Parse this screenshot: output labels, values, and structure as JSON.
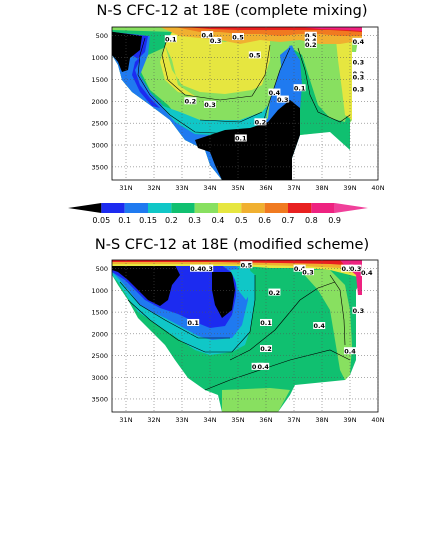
{
  "chart_data": [
    {
      "type": "heatmap",
      "title": "N-S CFC-12 at 18E (complete mixing)",
      "x_ticks": [
        "31N",
        "32N",
        "33N",
        "34N",
        "35N",
        "36N",
        "37N",
        "38N",
        "39N",
        "40N"
      ],
      "x_range": [
        30.5,
        40
      ],
      "y_ticks": [
        "500",
        "1000",
        "1500",
        "2000",
        "2500",
        "3000",
        "3500"
      ],
      "y_range": [
        300,
        3800
      ],
      "grid": true,
      "contour_labels": [
        {
          "text": "0.1",
          "x": 32.6,
          "y": 580
        },
        {
          "text": "0.4",
          "x": 33.9,
          "y": 485
        },
        {
          "text": "0.3",
          "x": 34.2,
          "y": 620
        },
        {
          "text": "0.5",
          "x": 35.0,
          "y": 530
        },
        {
          "text": "0.5",
          "x": 35.6,
          "y": 950
        },
        {
          "text": "0.5",
          "x": 37.6,
          "y": 500
        },
        {
          "text": "0.4",
          "x": 37.6,
          "y": 620
        },
        {
          "text": "0.2",
          "x": 37.6,
          "y": 710
        },
        {
          "text": "0.4",
          "x": 39.3,
          "y": 640
        },
        {
          "text": "0.3",
          "x": 39.3,
          "y": 1110
        },
        {
          "text": "0.2",
          "x": 39.3,
          "y": 1370
        },
        {
          "text": "0.3",
          "x": 39.3,
          "y": 1450
        },
        {
          "text": "0.3",
          "x": 39.3,
          "y": 1730
        },
        {
          "text": "0.1",
          "x": 37.2,
          "y": 1700
        },
        {
          "text": "0.4",
          "x": 36.3,
          "y": 1800
        },
        {
          "text": "0.3",
          "x": 36.6,
          "y": 1960
        },
        {
          "text": "0.2",
          "x": 33.3,
          "y": 2000
        },
        {
          "text": "0.3",
          "x": 34.0,
          "y": 2080
        },
        {
          "text": "0.2",
          "x": 35.8,
          "y": 2480
        },
        {
          "text": "0.1",
          "x": 35.1,
          "y": 2850
        }
      ]
    },
    {
      "type": "heatmap",
      "title": "N-S CFC-12 at 18E (modified scheme)",
      "x_ticks": [
        "31N",
        "32N",
        "33N",
        "34N",
        "35N",
        "36N",
        "37N",
        "38N",
        "39N",
        "40N"
      ],
      "x_range": [
        30.5,
        40
      ],
      "y_ticks": [
        "500",
        "1000",
        "1500",
        "2000",
        "2500",
        "3000",
        "3500"
      ],
      "y_range": [
        300,
        3800
      ],
      "grid": true,
      "contour_labels": [
        {
          "text": "0.4",
          "x": 33.5,
          "y": 500
        },
        {
          "text": "0.3",
          "x": 33.9,
          "y": 500
        },
        {
          "text": "0.5",
          "x": 35.3,
          "y": 420
        },
        {
          "text": "0.4",
          "x": 37.2,
          "y": 500
        },
        {
          "text": "0.3",
          "x": 37.5,
          "y": 580
        },
        {
          "text": "0.5",
          "x": 38.9,
          "y": 500
        },
        {
          "text": "0.3",
          "x": 39.2,
          "y": 500
        },
        {
          "text": "0.4",
          "x": 39.6,
          "y": 600
        },
        {
          "text": "0.2",
          "x": 36.3,
          "y": 1050
        },
        {
          "text": "0.3",
          "x": 39.3,
          "y": 1470
        },
        {
          "text": "0.1",
          "x": 33.4,
          "y": 1750
        },
        {
          "text": "0.1",
          "x": 36.0,
          "y": 1750
        },
        {
          "text": "0.4",
          "x": 37.9,
          "y": 1820
        },
        {
          "text": "0.2",
          "x": 36.0,
          "y": 2350
        },
        {
          "text": "0.4",
          "x": 39.0,
          "y": 2400
        },
        {
          "text": "0.3",
          "x": 35.7,
          "y": 2760
        },
        {
          "text": "0.4",
          "x": 35.9,
          "y": 2760
        }
      ]
    }
  ],
  "colorbar": {
    "labels": [
      "0.05",
      "0.1",
      "0.15",
      "0.2",
      "0.3",
      "0.4",
      "0.5",
      "0.6",
      "0.7",
      "0.8",
      "0.9"
    ],
    "colors": [
      "#000000",
      "#1c2bf0",
      "#1f7af0",
      "#10c7c7",
      "#10c070",
      "#88e060",
      "#e6e640",
      "#f0b030",
      "#f07a20",
      "#e82020",
      "#ee2280",
      "#f0409a"
    ]
  }
}
